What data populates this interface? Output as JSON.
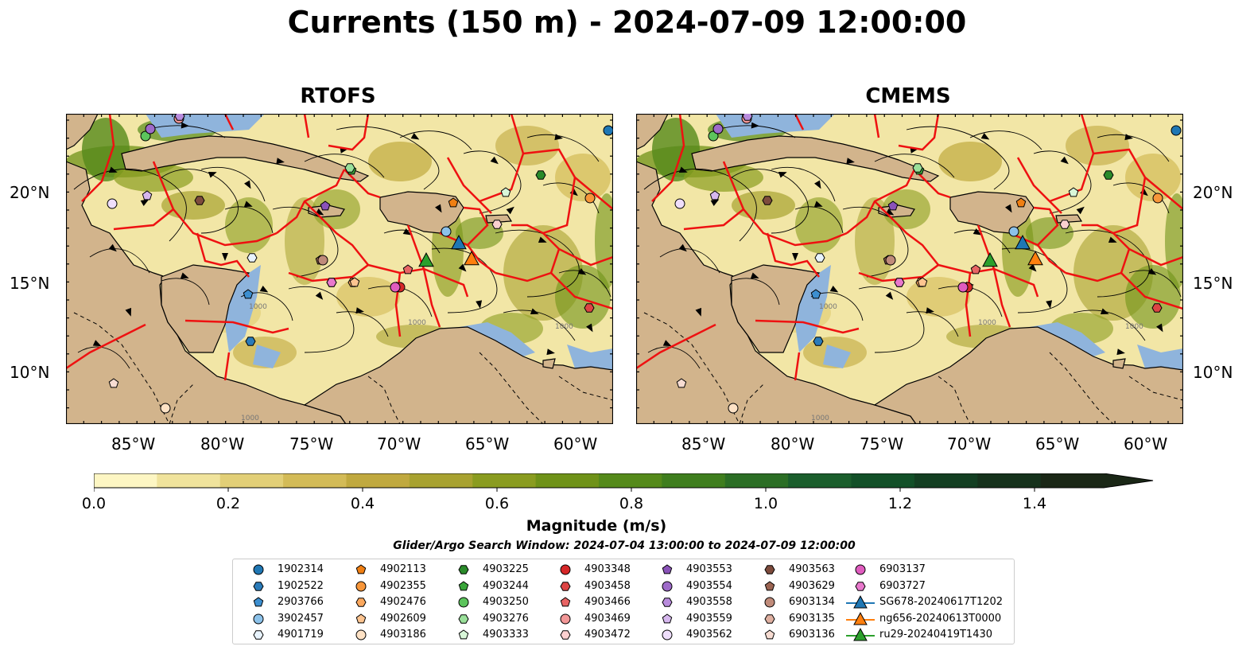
{
  "title": "Currents (150 m) - 2024-07-09 12:00:00",
  "panels": [
    {
      "title": "RTOFS"
    },
    {
      "title": "CMEMS"
    }
  ],
  "axes": {
    "lat_ticks": [
      "20°N",
      "15°N",
      "10°N"
    ],
    "lon_ticks": [
      "85°W",
      "80°W",
      "75°W",
      "70°W",
      "65°W",
      "60°W"
    ]
  },
  "contour_label": "1000",
  "colorbar": {
    "label": "Magnitude (m/s)",
    "ticks": [
      "0.0",
      "0.2",
      "0.4",
      "0.6",
      "0.8",
      "1.0",
      "1.2",
      "1.4"
    ],
    "min": 0.0,
    "max": 1.5,
    "extend": "max",
    "colors": [
      "#fdf6c3",
      "#f0e39c",
      "#e2cf77",
      "#d3bb57",
      "#c0a93f",
      "#a8a230",
      "#8a9c20",
      "#6f9218",
      "#558a1a",
      "#3f7e1e",
      "#2b6e25",
      "#1a5e2c",
      "#125028",
      "#133f22",
      "#16321c",
      "#1a2716"
    ]
  },
  "search_window": "Glider/Argo Search Window: 2024-07-04 13:00:00 to 2024-07-09 12:00:00",
  "legend": {
    "columns": [
      [
        {
          "label": "1902314",
          "shape": "circle",
          "color": "#1f77b4"
        },
        {
          "label": "1902522",
          "shape": "hexagon",
          "color": "#2b7bb9"
        },
        {
          "label": "2903766",
          "shape": "pentagon",
          "color": "#3d8fd0"
        },
        {
          "label": "3902457",
          "shape": "circle",
          "color": "#8cc2ea"
        },
        {
          "label": "4901719",
          "shape": "hexagon",
          "color": "#e8f3fd"
        }
      ],
      [
        {
          "label": "4902113",
          "shape": "pentagon",
          "color": "#f07f12"
        },
        {
          "label": "4902355",
          "shape": "circle",
          "color": "#f7963a"
        },
        {
          "label": "4902476",
          "shape": "hexagon",
          "color": "#fba85e"
        },
        {
          "label": "4902609",
          "shape": "pentagon",
          "color": "#fdc490"
        },
        {
          "label": "4903186",
          "shape": "circle",
          "color": "#fee2c5"
        }
      ],
      [
        {
          "label": "4903225",
          "shape": "hexagon",
          "color": "#2a8a2a"
        },
        {
          "label": "4903244",
          "shape": "pentagon",
          "color": "#3aa53a"
        },
        {
          "label": "4903250",
          "shape": "circle",
          "color": "#5cc45c"
        },
        {
          "label": "4903276",
          "shape": "hexagon",
          "color": "#9ae09a"
        },
        {
          "label": "4903333",
          "shape": "pentagon",
          "color": "#d9f7d9"
        }
      ],
      [
        {
          "label": "4903348",
          "shape": "circle",
          "color": "#d62728"
        },
        {
          "label": "4903458",
          "shape": "hexagon",
          "color": "#dd4444"
        },
        {
          "label": "4903466",
          "shape": "pentagon",
          "color": "#e86464"
        },
        {
          "label": "4903469",
          "shape": "circle",
          "color": "#f29797"
        },
        {
          "label": "4903472",
          "shape": "hexagon",
          "color": "#fbd0d0"
        }
      ],
      [
        {
          "label": "4903553",
          "shape": "pentagon",
          "color": "#8a52b8"
        },
        {
          "label": "4903554",
          "shape": "circle",
          "color": "#9e6bc9"
        },
        {
          "label": "4903558",
          "shape": "hexagon",
          "color": "#b88bdc"
        },
        {
          "label": "4903559",
          "shape": "pentagon",
          "color": "#d6b7ee"
        },
        {
          "label": "4903562",
          "shape": "circle",
          "color": "#efdefb"
        }
      ],
      [
        {
          "label": "4903563",
          "shape": "hexagon",
          "color": "#7d4b3c"
        },
        {
          "label": "4903629",
          "shape": "pentagon",
          "color": "#9b6452"
        },
        {
          "label": "6903134",
          "shape": "circle",
          "color": "#c08b7a"
        },
        {
          "label": "6903135",
          "shape": "hexagon",
          "color": "#dfb0a1"
        },
        {
          "label": "6903136",
          "shape": "pentagon",
          "color": "#f7dcd2"
        }
      ],
      [
        {
          "label": "6903137",
          "shape": "circle",
          "color": "#e05cbf"
        },
        {
          "label": "6903727",
          "shape": "hexagon",
          "color": "#e878cc"
        },
        {
          "label": "SG678-20240617T1202",
          "shape": "triangle",
          "color": "#1f77b4"
        },
        {
          "label": "ng656-20240613T0000",
          "shape": "triangle",
          "color": "#ff7f0e"
        },
        {
          "label": "ru29-20240419T1430",
          "shape": "triangle",
          "color": "#2ca02c"
        }
      ]
    ]
  },
  "colors": {
    "land": "#d2b48c",
    "shelf": "#8fb4dc",
    "eez_lines": "#ee1111",
    "streamlines": "#000000"
  }
}
